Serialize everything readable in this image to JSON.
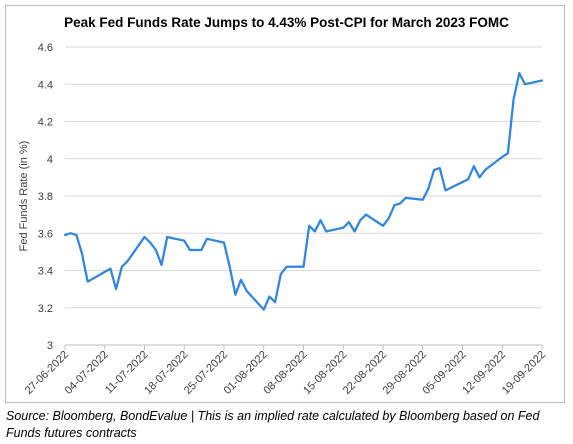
{
  "chart_data": {
    "type": "line",
    "title": "Peak Fed Funds Rate Jumps to 4.43% Post-CPI for March 2023 FOMC",
    "xlabel": "",
    "ylabel": "Fed Funds Rate (in %)",
    "ylim": [
      3,
      4.6
    ],
    "yticks": [
      "3",
      "3.2",
      "3.4",
      "3.6",
      "3.8",
      "4",
      "4.2",
      "4.4",
      "4.6"
    ],
    "grid": true,
    "legend": "none",
    "line_color": "#2e86de",
    "x": [
      "2022-06-27",
      "2022-06-28",
      "2022-06-29",
      "2022-06-30",
      "2022-07-01",
      "2022-07-05",
      "2022-07-06",
      "2022-07-07",
      "2022-07-08",
      "2022-07-11",
      "2022-07-12",
      "2022-07-13",
      "2022-07-14",
      "2022-07-15",
      "2022-07-18",
      "2022-07-19",
      "2022-07-20",
      "2022-07-21",
      "2022-07-22",
      "2022-07-25",
      "2022-07-26",
      "2022-07-27",
      "2022-07-28",
      "2022-07-29",
      "2022-08-01",
      "2022-08-02",
      "2022-08-03",
      "2022-08-04",
      "2022-08-05",
      "2022-08-08",
      "2022-08-09",
      "2022-08-10",
      "2022-08-11",
      "2022-08-12",
      "2022-08-15",
      "2022-08-16",
      "2022-08-17",
      "2022-08-18",
      "2022-08-19",
      "2022-08-22",
      "2022-08-23",
      "2022-08-24",
      "2022-08-25",
      "2022-08-26",
      "2022-08-29",
      "2022-08-30",
      "2022-08-31",
      "2022-09-01",
      "2022-09-02",
      "2022-09-06",
      "2022-09-07",
      "2022-09-08",
      "2022-09-09",
      "2022-09-12",
      "2022-09-13",
      "2022-09-14",
      "2022-09-15",
      "2022-09-16",
      "2022-09-19"
    ],
    "values": [
      3.59,
      3.6,
      3.59,
      3.49,
      3.34,
      3.41,
      3.3,
      3.42,
      3.45,
      3.58,
      3.55,
      3.51,
      3.43,
      3.58,
      3.56,
      3.51,
      3.51,
      3.51,
      3.57,
      3.55,
      3.42,
      3.27,
      3.35,
      3.29,
      3.19,
      3.26,
      3.23,
      3.38,
      3.42,
      3.42,
      3.64,
      3.61,
      3.67,
      3.61,
      3.63,
      3.66,
      3.61,
      3.67,
      3.7,
      3.64,
      3.68,
      3.75,
      3.76,
      3.79,
      3.78,
      3.84,
      3.94,
      3.95,
      3.83,
      3.89,
      3.96,
      3.9,
      3.94,
      4.01,
      4.03,
      4.32,
      4.46,
      4.4,
      4.42
    ],
    "xtick_labels": [
      "27-06-2022",
      "04-07-2022",
      "11-07-2022",
      "18-07-2022",
      "25-07-2022",
      "01-08-2022",
      "08-08-2022",
      "15-08-2022",
      "22-08-2022",
      "29-08-2022",
      "05-09-2022",
      "12-09-2022",
      "19-09-2022"
    ]
  },
  "source_note": "Source: Bloomberg, BondEvalue | This is an implied rate calculated by Bloomberg based on Fed Funds futures contracts"
}
